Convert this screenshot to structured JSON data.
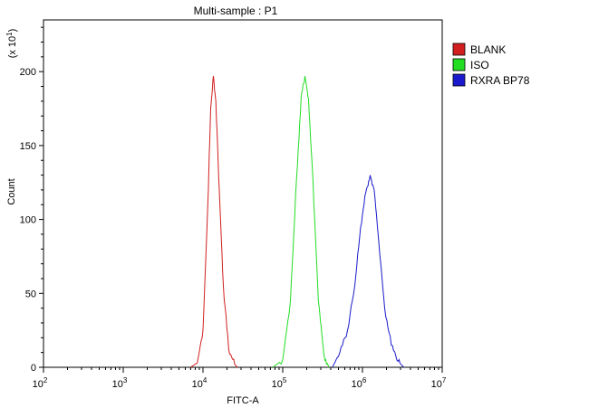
{
  "chart_data": {
    "type": "line",
    "title": "Multi-sample : P1",
    "xlabel": "FITC-A",
    "ylabel": "Count",
    "y_multiplier_label": {
      "base": "(x 10",
      "exp": "1",
      "close": ")"
    },
    "x_scale": "log",
    "xlim": [
      100,
      10000000
    ],
    "ylim": [
      0,
      235
    ],
    "x_ticks": [
      {
        "base": "10",
        "exp": "2",
        "value": 100
      },
      {
        "base": "10",
        "exp": "3",
        "value": 1000
      },
      {
        "base": "10",
        "exp": "4",
        "value": 10000
      },
      {
        "base": "10",
        "exp": "5",
        "value": 100000
      },
      {
        "base": "10",
        "exp": "6",
        "value": 1000000
      },
      {
        "base": "10",
        "exp": "7",
        "value": 10000000
      }
    ],
    "y_ticks": [
      "0",
      "50",
      "100",
      "150",
      "200"
    ],
    "y_tick_values": [
      0,
      50,
      100,
      150,
      200
    ],
    "legend_position": "top-right, outside plot",
    "grid": false,
    "series": [
      {
        "name": "BLANK",
        "color": "#d11f1f",
        "points": [
          [
            7000,
            0
          ],
          [
            8500,
            3
          ],
          [
            10000,
            25
          ],
          [
            11500,
            110
          ],
          [
            12500,
            175
          ],
          [
            13500,
            197
          ],
          [
            14500,
            180
          ],
          [
            16000,
            120
          ],
          [
            18000,
            55
          ],
          [
            21000,
            12
          ],
          [
            25000,
            2
          ],
          [
            27000,
            0
          ]
        ]
      },
      {
        "name": "ISO",
        "color": "#22dd22",
        "points": [
          [
            75000,
            0
          ],
          [
            100000,
            5
          ],
          [
            125000,
            45
          ],
          [
            150000,
            130
          ],
          [
            170000,
            182
          ],
          [
            190000,
            197
          ],
          [
            210000,
            182
          ],
          [
            240000,
            125
          ],
          [
            280000,
            45
          ],
          [
            330000,
            8
          ],
          [
            380000,
            0
          ]
        ]
      },
      {
        "name": "RXRA BP78",
        "color": "#1a1acc",
        "points": [
          [
            420000,
            0
          ],
          [
            520000,
            10
          ],
          [
            650000,
            25
          ],
          [
            800000,
            55
          ],
          [
            950000,
            95
          ],
          [
            1100000,
            118
          ],
          [
            1250000,
            130
          ],
          [
            1400000,
            120
          ],
          [
            1600000,
            85
          ],
          [
            1900000,
            40
          ],
          [
            2300000,
            15
          ],
          [
            2800000,
            4
          ],
          [
            3300000,
            0
          ]
        ]
      }
    ]
  }
}
